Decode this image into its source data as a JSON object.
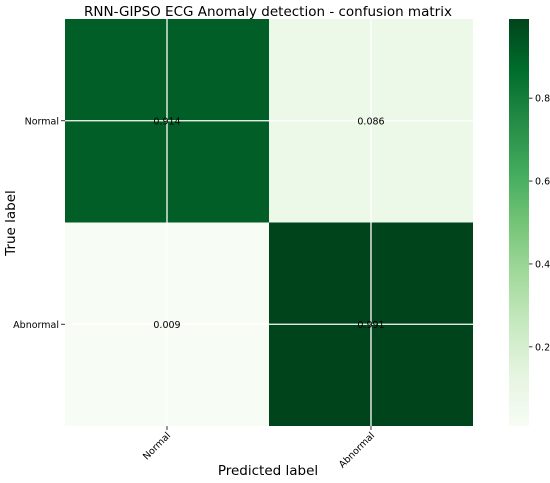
{
  "chart_data": {
    "type": "heatmap",
    "title": "RNN-GIPSO ECG Anomaly detection -  confusion matrix",
    "xlabel": "Predicted label",
    "ylabel": "True label",
    "row_labels": [
      "Normal",
      "Abnormal"
    ],
    "col_labels": [
      "Normal",
      "Abnormal"
    ],
    "values": [
      [
        0.914,
        0.086
      ],
      [
        0.009,
        0.991
      ]
    ],
    "cell_labels": [
      [
        "0.914",
        "0.086"
      ],
      [
        "0.009",
        "0.991"
      ]
    ],
    "colormap": "Greens",
    "colorbar": {
      "range": [
        0.009,
        0.991
      ],
      "ticks": [
        0.2,
        0.4,
        0.6,
        0.8
      ],
      "tick_labels": [
        "0.2",
        "0.4",
        "0.6",
        "0.8"
      ]
    },
    "grid": true,
    "colors": {
      "low": "#f7fcf5",
      "high": "#00441b",
      "grid": "#ffffff"
    }
  }
}
